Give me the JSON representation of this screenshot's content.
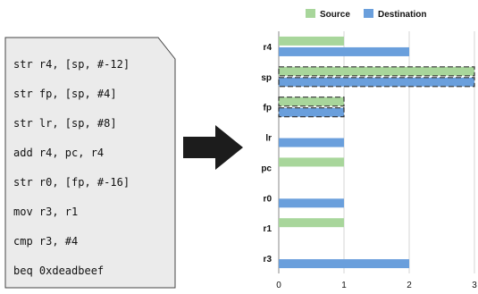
{
  "code": {
    "lines": [
      "str r4, [sp, #-12]",
      "str fp, [sp, #4]",
      "str lr, [sp, #8]",
      "add r4, pc, r4",
      "str r0, [fp, #-16]",
      "mov r3, r1",
      "cmp r3, #4",
      "beq 0xdeadbeef"
    ]
  },
  "colors": {
    "source": "#a8d69b",
    "destination": "#6a9fdc",
    "page_bg": "#ebebeb"
  },
  "chart_data": {
    "type": "bar",
    "orientation": "horizontal",
    "categories": [
      "r4",
      "sp",
      "fp",
      "lr",
      "pc",
      "r0",
      "r1",
      "r3"
    ],
    "series": [
      {
        "name": "Source",
        "color": "#a8d69b",
        "values": [
          1,
          3,
          1,
          0,
          1,
          0,
          1,
          0
        ]
      },
      {
        "name": "Destination",
        "color": "#6a9fdc",
        "values": [
          2,
          3,
          1,
          1,
          0,
          1,
          0,
          2
        ]
      }
    ],
    "highlighted": [
      "sp",
      "fp"
    ],
    "xticks": [
      "0",
      "1",
      "2",
      "3"
    ],
    "xlim": [
      0,
      3
    ],
    "grid": "vertical",
    "legend": "top"
  }
}
